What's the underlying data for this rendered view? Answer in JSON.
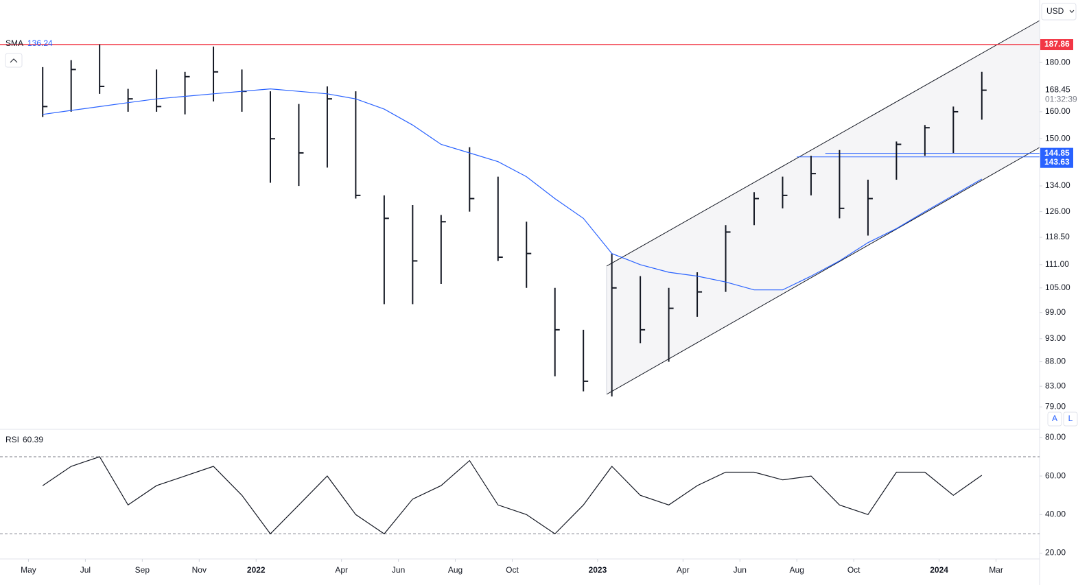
{
  "toolbar": {
    "currency": "USD",
    "buttons": [
      "A",
      "L"
    ]
  },
  "chart_data": [
    {
      "type": "ohlc",
      "x": [
        "2021-05",
        "2021-06",
        "2021-07",
        "2021-08",
        "2021-09",
        "2021-10",
        "2021-11",
        "2021-12",
        "2022-01",
        "2022-02",
        "2022-03",
        "2022-04",
        "2022-05",
        "2022-06",
        "2022-07",
        "2022-08",
        "2022-09",
        "2022-10",
        "2022-11",
        "2022-12",
        "2023-01",
        "2023-02",
        "2023-03",
        "2023-04",
        "2023-05",
        "2023-06",
        "2023-07",
        "2023-08",
        "2023-09",
        "2023-10",
        "2023-11",
        "2023-12",
        "2024-01",
        "2024-02"
      ],
      "high": [
        178,
        181,
        188,
        169,
        177,
        176,
        187,
        177,
        168,
        163,
        170,
        168,
        131,
        128,
        125,
        147,
        137,
        123,
        105,
        95,
        114,
        108,
        105,
        109,
        122,
        132,
        137,
        144,
        146,
        136,
        149,
        155,
        162,
        176
      ],
      "low": [
        158,
        160,
        167,
        160,
        160,
        159,
        164,
        160,
        135,
        134,
        140,
        130,
        101,
        101,
        106,
        126,
        112,
        105,
        85,
        82,
        81,
        92,
        88,
        98,
        104,
        122,
        127,
        131,
        124,
        119,
        136,
        144,
        145,
        157
      ],
      "close": [
        162,
        177,
        170,
        165,
        162,
        174,
        176,
        168,
        150,
        145,
        165,
        131,
        124,
        112,
        123,
        130,
        113,
        114,
        95,
        84,
        105,
        95,
        100,
        104,
        120,
        130,
        131,
        138,
        127,
        130,
        148,
        154,
        160,
        168.45
      ],
      "color": "#131722",
      "log": true,
      "ylim": [
        75,
        209
      ],
      "yticks": [
        {
          "value": 79,
          "label": "79.00"
        },
        {
          "value": 83,
          "label": "83.00"
        },
        {
          "value": 88,
          "label": "88.00"
        },
        {
          "value": 93,
          "label": "93.00"
        },
        {
          "value": 99,
          "label": "99.00"
        },
        {
          "value": 105,
          "label": "105.00"
        },
        {
          "value": 111,
          "label": "111.00"
        },
        {
          "value": 118.5,
          "label": "118.50"
        },
        {
          "value": 126,
          "label": "126.00"
        },
        {
          "value": 134,
          "label": "134.00"
        },
        {
          "value": 150,
          "label": "150.00"
        },
        {
          "value": 160,
          "label": "160.00"
        },
        {
          "value": 180,
          "label": "180.00"
        }
      ],
      "xlim": [
        "2021-04",
        "2024-04"
      ],
      "xticks": [
        {
          "value": "2021-05",
          "label": "May"
        },
        {
          "value": "2021-07",
          "label": "Jul"
        },
        {
          "value": "2021-09",
          "label": "Sep"
        },
        {
          "value": "2021-11",
          "label": "Nov"
        },
        {
          "value": "2022-01",
          "label": "2022"
        },
        {
          "value": "2022-04",
          "label": "Apr"
        },
        {
          "value": "2022-06",
          "label": "Jun"
        },
        {
          "value": "2022-08",
          "label": "Aug"
        },
        {
          "value": "2022-10",
          "label": "Oct"
        },
        {
          "value": "2023-01",
          "label": "2023"
        },
        {
          "value": "2023-04",
          "label": "Apr"
        },
        {
          "value": "2023-06",
          "label": "Jun"
        },
        {
          "value": "2023-08",
          "label": "Aug"
        },
        {
          "value": "2023-10",
          "label": "Oct"
        },
        {
          "value": "2024-01",
          "label": "2024"
        },
        {
          "value": "2024-03",
          "label": "Mar"
        }
      ],
      "series": [
        {
          "name": "SMA",
          "color": "#2962ff",
          "values": [
            159,
            160.5,
            162,
            163.5,
            165,
            166,
            167,
            168,
            169,
            168,
            167,
            165,
            161,
            155,
            148,
            145,
            142,
            137,
            130,
            124,
            114,
            111,
            109,
            108,
            106.5,
            104.5,
            104.5,
            108,
            112,
            117,
            121,
            126,
            131,
            136.24
          ]
        }
      ],
      "levels": [
        {
          "value": 187.86,
          "color": "#f23645",
          "start": "2021-04"
        },
        {
          "value": 144.85,
          "color": "#2962ff",
          "start": "2023-09"
        },
        {
          "value": 143.63,
          "color": "#2962ff",
          "start": "2023-08"
        }
      ],
      "timer": "01:32:39"
    },
    {
      "type": "line",
      "x": [
        "2021-05",
        "2021-06",
        "2021-07",
        "2021-08",
        "2021-09",
        "2021-10",
        "2021-11",
        "2021-12",
        "2022-01",
        "2022-02",
        "2022-03",
        "2022-04",
        "2022-05",
        "2022-06",
        "2022-07",
        "2022-08",
        "2022-09",
        "2022-10",
        "2022-11",
        "2022-12",
        "2023-01",
        "2023-02",
        "2023-03",
        "2023-04",
        "2023-05",
        "2023-06",
        "2023-07",
        "2023-08",
        "2023-09",
        "2023-10",
        "2023-11",
        "2023-12",
        "2024-01",
        "2024-02"
      ],
      "series": [
        {
          "name": "RSI",
          "color": "#131722",
          "values": [
            55,
            65,
            70,
            45,
            55,
            60,
            65,
            50,
            30,
            45,
            60,
            40,
            30,
            48,
            55,
            68,
            45,
            40,
            30,
            45,
            65,
            50,
            45,
            55,
            62,
            62,
            58,
            60,
            45,
            40,
            62,
            62,
            50,
            60.39
          ]
        }
      ],
      "ylim": [
        17,
        83.5
      ],
      "yticks": [
        {
          "value": 20,
          "label": "20.00"
        },
        {
          "value": 40,
          "label": "40.00"
        },
        {
          "value": 60,
          "label": "60.00"
        },
        {
          "value": 80,
          "label": "80.00"
        }
      ],
      "bands": [
        70,
        30
      ]
    }
  ]
}
